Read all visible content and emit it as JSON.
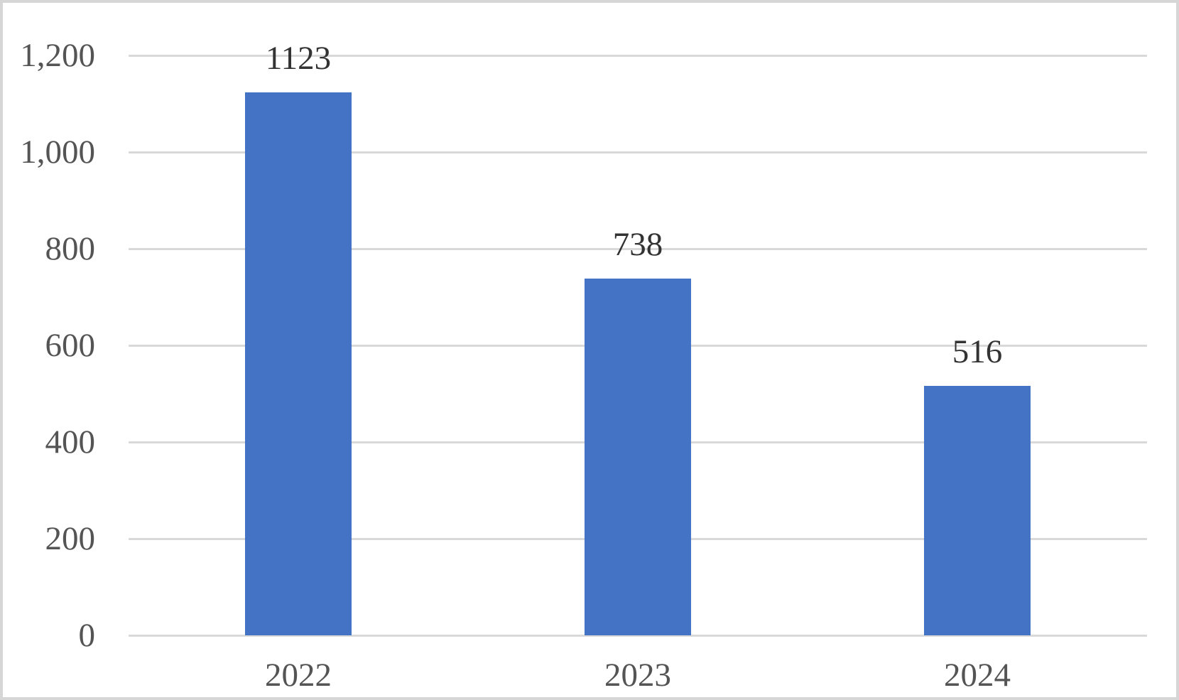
{
  "chart_data": {
    "type": "bar",
    "title": "",
    "xlabel": "",
    "ylabel": "",
    "categories": [
      "2022",
      "2023",
      "2024"
    ],
    "values": [
      1123,
      738,
      516
    ],
    "data_labels": [
      "1123",
      "738",
      "516"
    ],
    "series": [
      {
        "name": "",
        "values": [
          1123,
          738,
          516
        ]
      }
    ],
    "ylim": [
      0,
      1200
    ],
    "ytick_interval": 200,
    "yticks": [
      {
        "value": 1200,
        "label": "1,200"
      },
      {
        "value": 1000,
        "label": "1,000"
      },
      {
        "value": 800,
        "label": "800"
      },
      {
        "value": 600,
        "label": "600"
      },
      {
        "value": 400,
        "label": "400"
      },
      {
        "value": 200,
        "label": "200"
      },
      {
        "value": 0,
        "label": "0"
      }
    ],
    "grid": "horizontal-only",
    "legend": "none",
    "bar_color": "#4472C4",
    "gridline_color": "#D9D9D9",
    "axis_label_color": "#545454",
    "data_label_color": "#333333",
    "background_color": "#FFFFFF",
    "frame_border_color": "#D6D6D6"
  }
}
